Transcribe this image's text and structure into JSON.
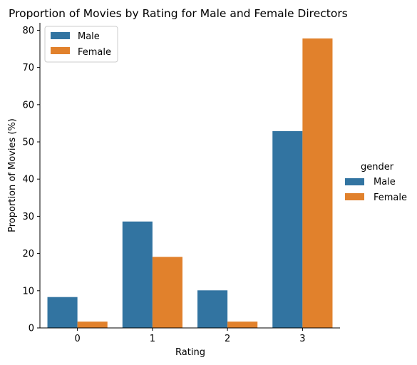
{
  "chart_data": {
    "type": "bar",
    "title": "Proportion of Movies by Rating for Male and Female Directors",
    "xlabel": "Rating",
    "ylabel": "Proportion of Movies (%)",
    "categories": [
      "0",
      "1",
      "2",
      "3"
    ],
    "series": [
      {
        "name": "Male",
        "color": "#3274a1",
        "values": [
          8.3,
          28.6,
          10.1,
          52.9
        ]
      },
      {
        "name": "Female",
        "color": "#e1812c",
        "values": [
          1.7,
          19.1,
          1.7,
          77.8
        ]
      }
    ],
    "ylim": [
      0,
      82
    ],
    "yticks": [
      "0",
      "10",
      "20",
      "30",
      "40",
      "50",
      "60",
      "70",
      "80"
    ],
    "grid": false,
    "inner_legend": {
      "placement": "top-left",
      "entries": [
        "Male",
        "Female"
      ]
    },
    "outer_legend": {
      "placement": "right",
      "title": "gender",
      "entries": [
        "Male",
        "Female"
      ]
    }
  }
}
